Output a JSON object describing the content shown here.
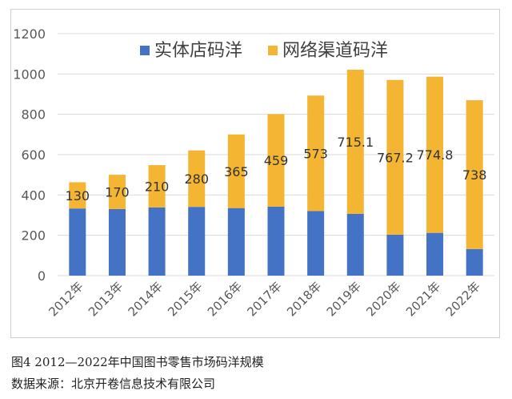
{
  "chart_data": {
    "type": "bar",
    "stacked": true,
    "categories": [
      "2012年",
      "2013年",
      "2014年",
      "2015年",
      "2016年",
      "2017年",
      "2018年",
      "2019年",
      "2020年",
      "2021年",
      "2022年"
    ],
    "series": [
      {
        "name": "实体店码洋",
        "color": "#4472c4",
        "values": [
          333,
          330,
          338,
          341,
          335,
          342,
          320,
          306,
          203,
          212,
          132
        ]
      },
      {
        "name": "网络渠道码洋",
        "color": "#f4b532",
        "values": [
          130,
          170,
          210,
          280,
          365,
          459,
          573,
          715.1,
          767.2,
          774.8,
          738
        ],
        "labels": [
          "130",
          "170",
          "210",
          "280",
          "365",
          "459",
          "573",
          "715.1",
          "767.2",
          "774.8",
          "738"
        ]
      }
    ],
    "ylim": [
      0,
      1200
    ],
    "yticks": [
      "0",
      "200",
      "400",
      "600",
      "800",
      "1000",
      "1200"
    ],
    "grid": true,
    "legend_position": "top"
  },
  "caption": {
    "figure": "图4 2012—2022年中国图书零售市场码洋规模",
    "source": "数据来源：北京开卷信息技术有限公司"
  }
}
